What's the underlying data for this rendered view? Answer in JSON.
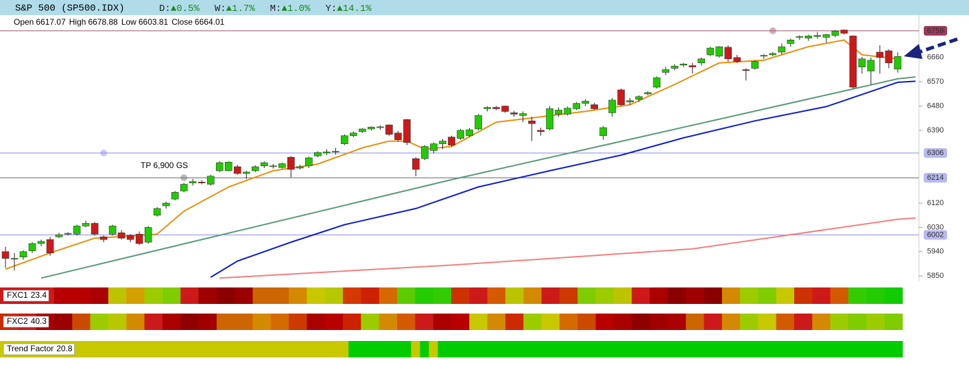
{
  "header": {
    "title": "S&P 500 (SP500.IDX)",
    "stats": [
      {
        "label": "D:",
        "value": "▲0.5%"
      },
      {
        "label": "W:",
        "value": "▲1.7%"
      },
      {
        "label": "M:",
        "value": "▲1.0%"
      },
      {
        "label": "Y:",
        "value": "▲14.1%"
      }
    ]
  },
  "chart_data": {
    "type": "candlestick",
    "legend": [
      {
        "label": "Open",
        "value": 6617.07
      },
      {
        "label": "High",
        "value": 6678.88
      },
      {
        "label": "Low",
        "value": 6603.81
      },
      {
        "label": "Close",
        "value": 6664.01
      }
    ],
    "annotation": "TP 6,900 GS",
    "up_color": "#22cc00",
    "down_color": "#cc1a1a",
    "ylim": [
      5830,
      6797
    ],
    "yticks": [
      5850,
      5940,
      6030,
      6120,
      6390,
      6480,
      6570,
      6660
    ],
    "open": [
      5940,
      5912,
      5920,
      5943,
      5970,
      5985,
      5995,
      6005,
      6005,
      6035,
      6045,
      5995,
      6005,
      6010,
      6000,
      6005,
      5975,
      6075,
      6110,
      6135,
      6165,
      6195,
      6198,
      6190,
      6240,
      6240,
      6255,
      6230,
      6240,
      6258,
      6256,
      6252,
      6290,
      6250,
      6258,
      6295,
      6306,
      6310,
      6340,
      6370,
      6385,
      6395,
      6400,
      6410,
      6380,
      6430,
      6285,
      6285,
      6315,
      6340,
      6365,
      6360,
      6370,
      6395,
      6470,
      6475,
      6480,
      6455,
      6445,
      6425,
      6390,
      6395,
      6450,
      6450,
      6470,
      6490,
      6485,
      6370,
      6455,
      6540,
      6495,
      6505,
      6525,
      6550,
      6605,
      6620,
      6632,
      6630,
      6640,
      6670,
      6665,
      6698,
      6660,
      6615,
      6620,
      6665,
      6670,
      6680,
      6712,
      6735,
      6732,
      6738,
      6735,
      6742,
      6762,
      6740,
      6625,
      6610,
      6680,
      6685,
      6617.07
    ],
    "high": [
      5958,
      5935,
      5945,
      5975,
      5985,
      5995,
      6010,
      6012,
      6040,
      6055,
      6050,
      6000,
      6040,
      6020,
      6005,
      6015,
      6035,
      6105,
      6125,
      6165,
      6195,
      6210,
      6205,
      6225,
      6275,
      6275,
      6262,
      6240,
      6260,
      6275,
      6265,
      6270,
      6295,
      6262,
      6292,
      6312,
      6320,
      6325,
      6375,
      6385,
      6398,
      6405,
      6408,
      6412,
      6388,
      6432,
      6290,
      6335,
      6345,
      6358,
      6370,
      6395,
      6398,
      6450,
      6480,
      6480,
      6482,
      6462,
      6460,
      6440,
      6400,
      6480,
      6475,
      6478,
      6495,
      6505,
      6492,
      6405,
      6510,
      6545,
      6510,
      6520,
      6535,
      6590,
      6625,
      6635,
      6640,
      6640,
      6660,
      6700,
      6702,
      6705,
      6670,
      6620,
      6650,
      6672,
      6680,
      6712,
      6730,
      6742,
      6745,
      6755,
      6748,
      6762,
      6764,
      6742,
      6662,
      6660,
      6705,
      6690,
      6678.88
    ],
    "low": [
      5880,
      5870,
      5910,
      5935,
      5960,
      5925,
      5990,
      6000,
      6000,
      6030,
      6000,
      5975,
      6000,
      5985,
      5975,
      5965,
      5970,
      6070,
      6100,
      6130,
      6160,
      6185,
      6190,
      6185,
      6235,
      6238,
      6225,
      6210,
      6235,
      6250,
      6248,
      6248,
      6215,
      6245,
      6250,
      6290,
      6298,
      6300,
      6335,
      6365,
      6380,
      6390,
      6392,
      6370,
      6350,
      6335,
      6220,
      6280,
      6305,
      6320,
      6330,
      6355,
      6365,
      6390,
      6460,
      6465,
      6455,
      6440,
      6420,
      6350,
      6370,
      6390,
      6440,
      6445,
      6465,
      6480,
      6465,
      6355,
      6440,
      6480,
      6485,
      6495,
      6520,
      6545,
      6595,
      6612,
      6625,
      6600,
      6630,
      6665,
      6660,
      6645,
      6640,
      6575,
      6615,
      6655,
      6665,
      6672,
      6700,
      6725,
      6722,
      6730,
      6715,
      6735,
      6745,
      6545,
      6600,
      6560,
      6600,
      6620,
      6603.81
    ],
    "close": [
      5915,
      5915,
      5940,
      5970,
      5978,
      5935,
      6003,
      6008,
      6035,
      6045,
      6005,
      5985,
      6035,
      5990,
      5985,
      5970,
      6030,
      6100,
      6120,
      6160,
      6190,
      6200,
      6195,
      6220,
      6270,
      6272,
      6230,
      6235,
      6255,
      6270,
      6258,
      6266,
      6245,
      6255,
      6288,
      6308,
      6310,
      6312,
      6370,
      6380,
      6395,
      6402,
      6403,
      6375,
      6355,
      6345,
      6245,
      6330,
      6340,
      6350,
      6335,
      6390,
      6392,
      6445,
      6475,
      6470,
      6460,
      6450,
      6452,
      6415,
      6385,
      6470,
      6465,
      6472,
      6490,
      6498,
      6470,
      6400,
      6502,
      6485,
      6500,
      6515,
      6530,
      6585,
      6615,
      6628,
      6636,
      6625,
      6655,
      6695,
      6700,
      6655,
      6645,
      6612,
      6645,
      6668,
      6675,
      6700,
      6725,
      6738,
      6740,
      6742,
      6745,
      6758,
      6750,
      6550,
      6655,
      6650,
      6660,
      6640,
      6664.01
    ],
    "overlays": [
      {
        "color": "#f08080",
        "x": [
          24,
          50,
          77,
          100,
          102
        ],
        "values": [
          5842,
          5890,
          5950,
          6060,
          6065
        ]
      },
      {
        "color": "#5a9a78",
        "x": [
          4,
          50,
          100,
          102
        ],
        "values": [
          5842,
          6207,
          6581,
          6588
        ]
      },
      {
        "color": "#1020c0",
        "x": [
          23,
          26,
          32,
          38,
          46,
          53,
          61,
          69,
          76,
          84,
          92,
          100,
          102
        ],
        "values": [
          5845,
          5905,
          5975,
          6040,
          6100,
          6180,
          6240,
          6298,
          6362,
          6425,
          6478,
          6568,
          6572
        ]
      },
      {
        "color": "#e8900c",
        "x": [
          0,
          5,
          10,
          15,
          17,
          20,
          25,
          30,
          35,
          40,
          43,
          45,
          47,
          50,
          55,
          60,
          65,
          70,
          75,
          80,
          85,
          90,
          94,
          96,
          100
        ],
        "values": [
          5875,
          5935,
          5990,
          6000,
          6005,
          6090,
          6180,
          6240,
          6265,
          6325,
          6350,
          6350,
          6320,
          6330,
          6420,
          6440,
          6460,
          6485,
          6560,
          6640,
          6650,
          6700,
          6725,
          6670,
          6655
        ]
      }
    ],
    "levels": [
      {
        "value": 6759,
        "color": "#a05070",
        "label_bg": "#9a3a5a",
        "label_color": "#ffffff",
        "marker": 86
      },
      {
        "value": 6306,
        "color": "#8888ee",
        "label_bg": "#b8b8f0",
        "label_color": "#1a1a66",
        "marker": 11
      },
      {
        "value": 6214,
        "color": "#666666",
        "label_bg": "#b8b8f0",
        "label_color": "#1a1a66",
        "marker": 20
      },
      {
        "value": 6002,
        "color": "#8888ee",
        "label_bg": "#b8b8f0",
        "label_color": "#1a1a66"
      }
    ]
  },
  "indicators": [
    {
      "name": "FXC1",
      "value": 23.4,
      "colors": [
        "#cc1a1a",
        "#cc1a1a",
        "#cc1a1a",
        "#b80000",
        "#b80000",
        "#aa0000",
        "#bcc400",
        "#d4a000",
        "#9ccc00",
        "#7fcc00",
        "#cc1a1a",
        "#a00000",
        "#8a0000",
        "#9a0000",
        "#cc6600",
        "#cc6600",
        "#d48a00",
        "#c8c800",
        "#b8c800",
        "#d43a00",
        "#cc2200",
        "#d46a00",
        "#5ccc00",
        "#22cc00",
        "#33cc00",
        "#cc3300",
        "#cc1a1a",
        "#d45a00",
        "#bcc400",
        "#d48a00",
        "#cc1a1a",
        "#cc3a00",
        "#7fcc00",
        "#9ccc00",
        "#bcc400",
        "#cc1a1a",
        "#aa0000",
        "#8a0000",
        "#a00000",
        "#8a0000",
        "#d48a00",
        "#9ccc00",
        "#7fcc00",
        "#c8c800",
        "#cc3300",
        "#cc1a1a",
        "#d45a00",
        "#33cc00",
        "#22cc00",
        "#11cc00"
      ]
    },
    {
      "name": "FXC2",
      "value": 40.3,
      "colors": [
        "#cc2a00",
        "#cc1a1a",
        "#aa0000",
        "#9a0000",
        "#cc4a00",
        "#9ccc00",
        "#b8c800",
        "#d48a00",
        "#cc1a1a",
        "#aa0000",
        "#900000",
        "#a00000",
        "#cc6600",
        "#cc6600",
        "#d48a00",
        "#d46a00",
        "#cc3a00",
        "#aa0000",
        "#b80000",
        "#cc2200",
        "#9ccc00",
        "#d48a00",
        "#d45a00",
        "#cc1a1a",
        "#aa0000",
        "#b80000",
        "#c8c800",
        "#d48a00",
        "#cc2a00",
        "#9ccc00",
        "#c8c800",
        "#d46a00",
        "#cc4a00",
        "#b80000",
        "#aa0000",
        "#900000",
        "#a00000",
        "#aa0000",
        "#cc6600",
        "#cc1a1a",
        "#d48a00",
        "#9ccc00",
        "#c8c800",
        "#d45a00",
        "#cc1a1a",
        "#d48a00",
        "#9ccc00",
        "#7fcc00",
        "#9ccc00",
        "#7fcc00"
      ]
    },
    {
      "name": "Trend Factor",
      "value": 20.8,
      "colors": [
        "#c8c800",
        "#c8c800",
        "#c8c800",
        "#c8c800",
        "#c8c800",
        "#c8c800",
        "#c8c800",
        "#c8c800",
        "#c8c800",
        "#c8c800",
        "#c8c800",
        "#c8c800",
        "#c8c800",
        "#c8c800",
        "#c8c800",
        "#c8c800",
        "#c8c800",
        "#c8c800",
        "#c8c800",
        "#c8c800",
        "#c8c800",
        "#c8c800",
        "#c8c800",
        "#c8c800",
        "#c8c800",
        "#c8c800",
        "#c8c800",
        "#c8c800",
        "#c8c800",
        "#c8c800",
        "#c8c800",
        "#c8c800",
        "#c8c800",
        "#c8c800",
        "#c8c800",
        "#c8c800",
        "#c8c800",
        "#c8c800",
        "#c8c800",
        "#00cc00",
        "#00cc00",
        "#00cc00",
        "#00cc00",
        "#00cc00",
        "#00cc00",
        "#00cc00",
        "#c8c800",
        "#00cc00",
        "#c8c800",
        "#00cc00",
        "#00cc00",
        "#00cc00",
        "#00cc00",
        "#00cc00",
        "#00cc00",
        "#00cc00",
        "#00cc00",
        "#00cc00",
        "#00cc00",
        "#00cc00",
        "#00cc00",
        "#00cc00",
        "#00cc00",
        "#00cc00",
        "#00cc00",
        "#00cc00",
        "#00cc00",
        "#00cc00",
        "#00cc00",
        "#00cc00",
        "#00cc00",
        "#00cc00",
        "#00cc00",
        "#00cc00",
        "#00cc00",
        "#00cc00",
        "#00cc00",
        "#00cc00",
        "#00cc00",
        "#00cc00",
        "#00cc00",
        "#00cc00",
        "#00cc00",
        "#00cc00",
        "#00cc00",
        "#00cc00",
        "#00cc00",
        "#00cc00",
        "#00cc00",
        "#00cc00",
        "#00cc00",
        "#00cc00",
        "#00cc00",
        "#00cc00",
        "#00cc00",
        "#00cc00",
        "#00cc00",
        "#00cc00",
        "#00cc00",
        "#00cc00",
        "#00cc00"
      ]
    }
  ]
}
